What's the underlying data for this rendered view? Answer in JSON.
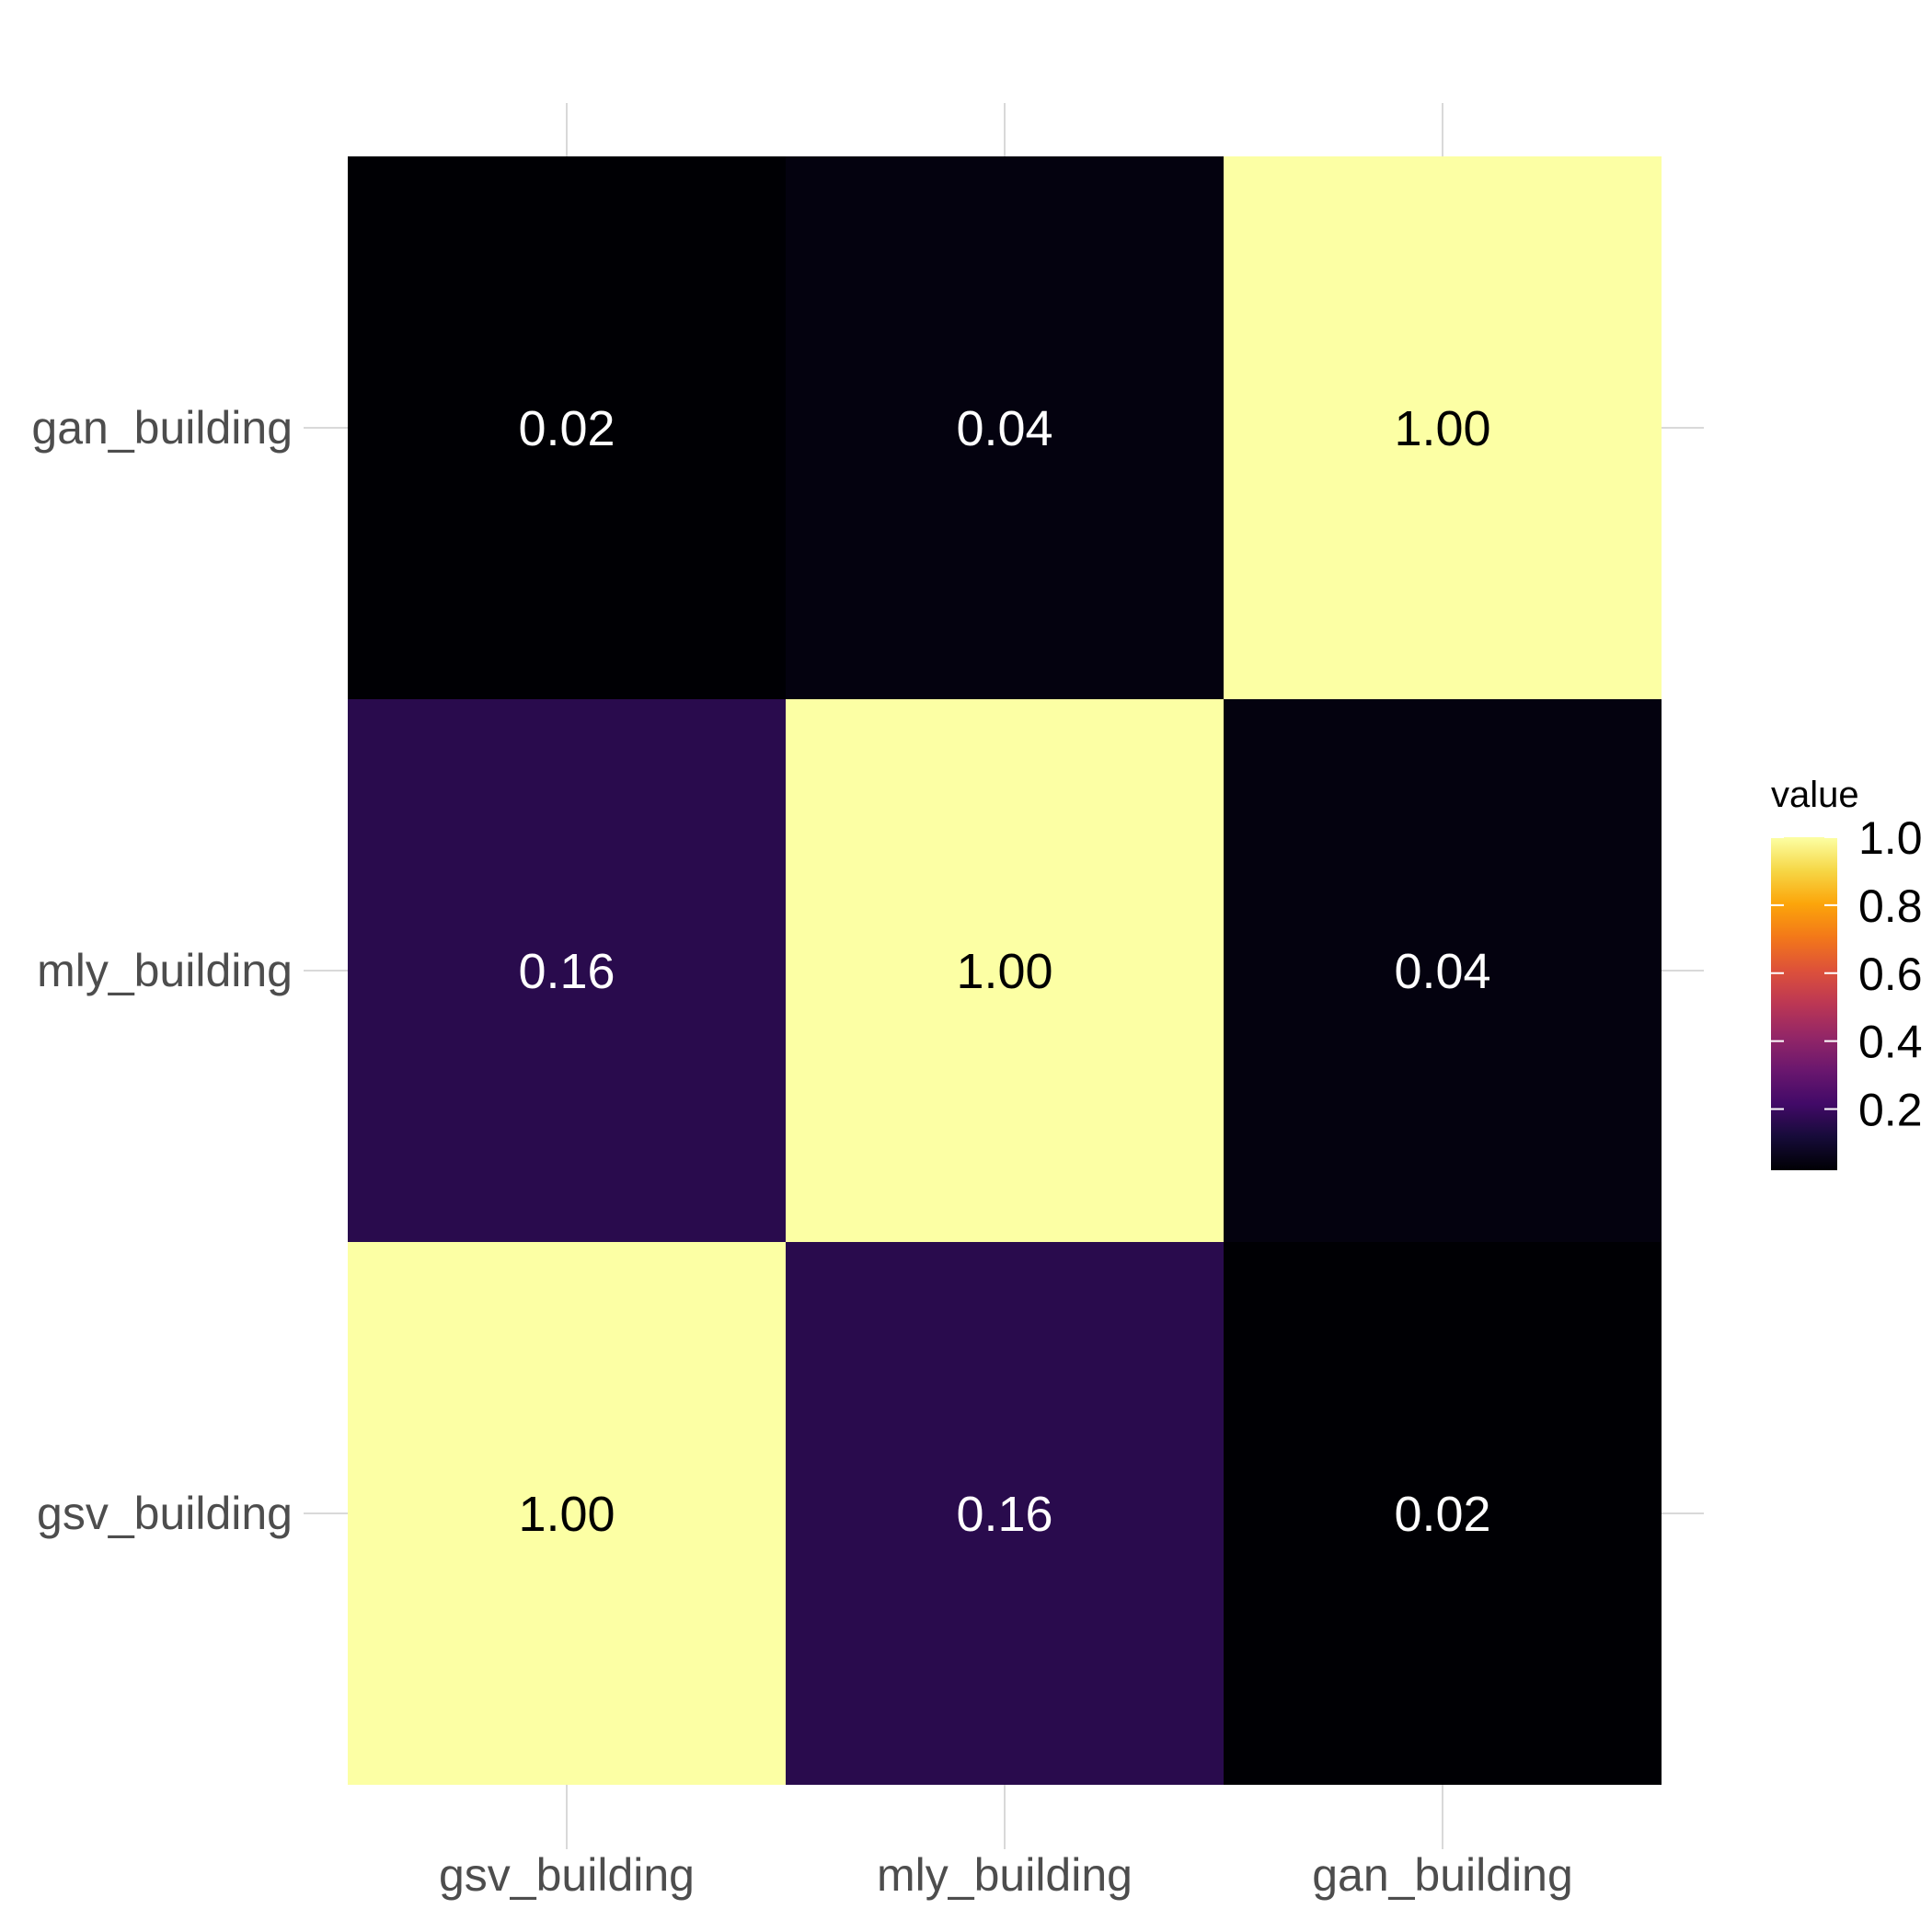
{
  "chart_data": {
    "type": "heatmap",
    "title": "",
    "xlabel": "",
    "ylabel": "",
    "x_categories": [
      "gsv_building",
      "mly_building",
      "gan_building"
    ],
    "y_categories": [
      "gsv_building",
      "mly_building",
      "gan_building"
    ],
    "values": [
      [
        1.0,
        0.16,
        0.02
      ],
      [
        0.16,
        1.0,
        0.04
      ],
      [
        0.02,
        0.04,
        1.0
      ]
    ],
    "cell_labels": [
      [
        "1.00",
        "0.16",
        "0.02"
      ],
      [
        "0.16",
        "1.00",
        "0.04"
      ],
      [
        "0.02",
        "0.04",
        "1.00"
      ]
    ],
    "colorscale": "inferno",
    "color_range": [
      0.02,
      1.0
    ],
    "legend": {
      "title": "value",
      "position": "right",
      "ticks": [
        0.2,
        0.4,
        0.6,
        0.8,
        1.0
      ],
      "tick_labels": [
        "0.2",
        "0.4",
        "0.6",
        "0.8",
        "1.0"
      ]
    },
    "grid": true
  }
}
